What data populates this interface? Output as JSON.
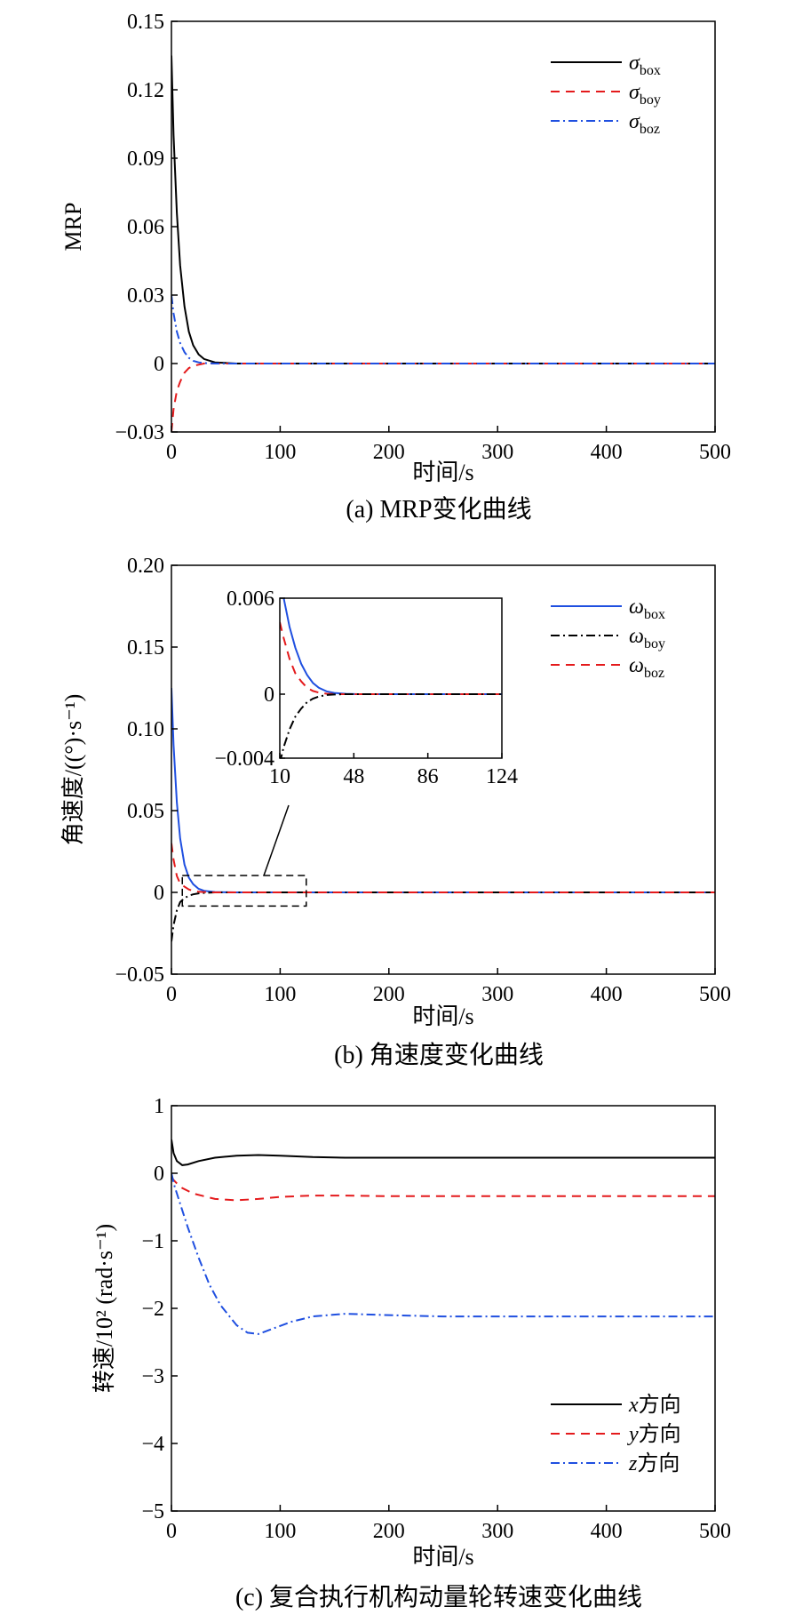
{
  "chart_data": [
    {
      "type": "line",
      "caption": "(a) MRP变化曲线",
      "xlabel": "时间/s",
      "ylabel": "MRP",
      "xlim": [
        0,
        500
      ],
      "ylim": [
        -0.03,
        0.15
      ],
      "xticks": [
        "0",
        "100",
        "200",
        "300",
        "400",
        "500"
      ],
      "yticks": [
        "−0.03",
        "0",
        "0.03",
        "0.06",
        "0.09",
        "0.12",
        "0.15"
      ],
      "legend_position": "top-right",
      "series": [
        {
          "name": "σ",
          "subscript": "box",
          "color": "#000000",
          "dash": "solid",
          "x": [
            0,
            2,
            5,
            8,
            12,
            16,
            20,
            25,
            30,
            40,
            60,
            100,
            200,
            300,
            400,
            500
          ],
          "y": [
            0.135,
            0.1,
            0.066,
            0.043,
            0.025,
            0.014,
            0.008,
            0.004,
            0.002,
            0.0005,
            0,
            0,
            0,
            0,
            0,
            0
          ]
        },
        {
          "name": "σ",
          "subscript": "boy",
          "color": "#e41a1c",
          "dash": "dashed",
          "x": [
            0,
            2,
            5,
            8,
            12,
            16,
            20,
            25,
            30,
            40,
            60,
            100,
            200,
            300,
            400,
            500
          ],
          "y": [
            -0.03,
            -0.02,
            -0.012,
            -0.008,
            -0.004,
            -0.002,
            -0.001,
            -0.0005,
            0,
            0,
            0,
            0,
            0,
            0,
            0,
            0
          ]
        },
        {
          "name": "σ",
          "subscript": "boz",
          "color": "#1f4fe0",
          "dash": "dashdot",
          "x": [
            0,
            2,
            5,
            8,
            12,
            16,
            20,
            25,
            30,
            40,
            60,
            100,
            200,
            300,
            400,
            500
          ],
          "y": [
            0.03,
            0.022,
            0.014,
            0.009,
            0.005,
            0.0025,
            0.0012,
            0.0005,
            0.0002,
            0,
            0,
            0,
            0,
            0,
            0,
            0
          ]
        }
      ]
    },
    {
      "type": "line",
      "caption": "(b) 角速度变化曲线",
      "xlabel": "时间/s",
      "ylabel": "角速度/((°)·s⁻¹)",
      "xlim": [
        0,
        500
      ],
      "ylim": [
        -0.05,
        0.2
      ],
      "xticks": [
        "0",
        "100",
        "200",
        "300",
        "400",
        "500"
      ],
      "yticks": [
        "−0.05",
        "0",
        "0.05",
        "0.10",
        "0.15",
        "0.20"
      ],
      "legend_position": "top-right",
      "series": [
        {
          "name": "ω",
          "subscript": "box",
          "color": "#1f4fe0",
          "dash": "solid",
          "x": [
            0,
            2,
            5,
            8,
            12,
            16,
            20,
            25,
            30,
            40,
            60,
            100,
            200,
            300,
            400,
            500
          ],
          "y": [
            0.125,
            0.09,
            0.055,
            0.033,
            0.017,
            0.009,
            0.005,
            0.0022,
            0.001,
            0.0002,
            0,
            0,
            0,
            0,
            0,
            0
          ]
        },
        {
          "name": "ω",
          "subscript": "boy",
          "color": "#000000",
          "dash": "dashdot",
          "x": [
            0,
            2,
            5,
            8,
            12,
            16,
            20,
            25,
            30,
            40,
            60,
            100,
            200,
            300,
            400,
            500
          ],
          "y": [
            -0.03,
            -0.02,
            -0.011,
            -0.006,
            -0.0035,
            -0.002,
            -0.0012,
            -0.0006,
            -0.0003,
            0,
            0,
            0,
            0,
            0,
            0,
            0
          ]
        },
        {
          "name": "ω",
          "subscript": "boz",
          "color": "#e41a1c",
          "dash": "dashed",
          "x": [
            0,
            2,
            5,
            8,
            12,
            16,
            20,
            25,
            30,
            40,
            60,
            100,
            200,
            300,
            400,
            500
          ],
          "y": [
            0.03,
            0.02,
            0.01,
            0.0055,
            0.0035,
            0.0018,
            0.0009,
            0.0004,
            0.0002,
            0,
            0,
            0,
            0,
            0,
            0,
            0
          ]
        }
      ],
      "inset": {
        "xlim": [
          10,
          124
        ],
        "ylim": [
          -0.004,
          0.006
        ],
        "xticks": [
          "10",
          "48",
          "86",
          "124"
        ],
        "yticks": [
          "−0.004",
          "0",
          "0.006"
        ],
        "zoom_region": {
          "x": [
            10,
            124
          ],
          "y": [
            -0.004,
            0.006
          ]
        },
        "series": [
          {
            "color": "#1f4fe0",
            "dash": "solid",
            "x": [
              10,
              12,
              15,
              18,
              21,
              24,
              27,
              30,
              34,
              38,
              44,
              50,
              60,
              80,
              124
            ],
            "y": [
              0.0075,
              0.006,
              0.0042,
              0.0029,
              0.0019,
              0.0012,
              0.0007,
              0.0004,
              0.00018,
              8e-05,
              2e-05,
              0,
              0,
              0,
              0
            ]
          },
          {
            "color": "#e41a1c",
            "dash": "dashed",
            "x": [
              10,
              12,
              15,
              18,
              21,
              24,
              27,
              30,
              34,
              38,
              44,
              50,
              60,
              80,
              124
            ],
            "y": [
              0.0045,
              0.0035,
              0.0022,
              0.0013,
              0.0008,
              0.0004,
              0.0002,
              0.0001,
              3e-05,
              0,
              0,
              0,
              0,
              0,
              0
            ]
          },
          {
            "color": "#000000",
            "dash": "dashdot",
            "x": [
              10,
              12,
              15,
              18,
              21,
              24,
              27,
              30,
              34,
              38,
              44,
              50,
              60,
              80,
              124
            ],
            "y": [
              -0.0043,
              -0.0033,
              -0.0022,
              -0.0014,
              -0.0009,
              -0.0005,
              -0.00028,
              -0.00015,
              -5e-05,
              -2e-05,
              0,
              0,
              0,
              0,
              0
            ]
          }
        ]
      }
    },
    {
      "type": "line",
      "caption": "(c) 复合执行机构动量轮转速变化曲线",
      "xlabel": "时间/s",
      "ylabel": "转速/10² (rad·s⁻¹)",
      "xlim": [
        0,
        500
      ],
      "ylim": [
        -5,
        1
      ],
      "xticks": [
        "0",
        "100",
        "200",
        "300",
        "400",
        "500"
      ],
      "yticks": [
        "−5",
        "−4",
        "−3",
        "−2",
        "−1",
        "0",
        "1"
      ],
      "legend_position": "bottom-right",
      "series": [
        {
          "name": "x方向",
          "italic": "x",
          "suffix": "方向",
          "color": "#000000",
          "dash": "solid",
          "x": [
            0,
            2,
            5,
            10,
            15,
            25,
            40,
            60,
            80,
            100,
            130,
            160,
            200,
            300,
            400,
            500
          ],
          "y": [
            0.5,
            0.3,
            0.18,
            0.12,
            0.13,
            0.18,
            0.23,
            0.26,
            0.27,
            0.26,
            0.24,
            0.23,
            0.23,
            0.23,
            0.23,
            0.23
          ]
        },
        {
          "name": "y方向",
          "italic": "y",
          "suffix": "方向",
          "color": "#e41a1c",
          "dash": "dashed",
          "x": [
            0,
            2,
            5,
            10,
            20,
            40,
            60,
            80,
            100,
            130,
            160,
            200,
            250,
            300,
            400,
            500
          ],
          "y": [
            -0.05,
            -0.1,
            -0.15,
            -0.22,
            -0.3,
            -0.38,
            -0.4,
            -0.38,
            -0.35,
            -0.33,
            -0.33,
            -0.34,
            -0.34,
            -0.34,
            -0.34,
            -0.34
          ]
        },
        {
          "name": "z方向",
          "italic": "z",
          "suffix": "方向",
          "color": "#1f4fe0",
          "dash": "dashdot",
          "x": [
            0,
            3,
            8,
            15,
            25,
            35,
            45,
            60,
            70,
            80,
            90,
            110,
            130,
            160,
            200,
            250,
            300,
            400,
            500
          ],
          "y": [
            0,
            -0.2,
            -0.45,
            -0.8,
            -1.25,
            -1.65,
            -1.95,
            -2.25,
            -2.36,
            -2.38,
            -2.32,
            -2.2,
            -2.12,
            -2.08,
            -2.1,
            -2.12,
            -2.12,
            -2.12,
            -2.12
          ]
        }
      ]
    }
  ]
}
